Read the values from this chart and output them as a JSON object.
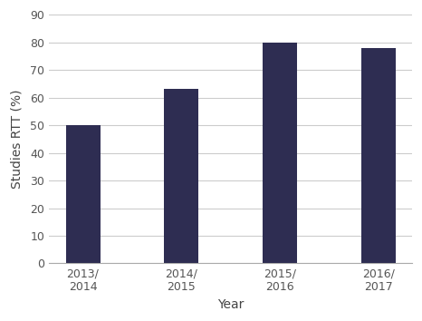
{
  "categories": [
    "2013/\n2014",
    "2014/\n2015",
    "2015/\n2016",
    "2016/\n2017"
  ],
  "values": [
    50,
    63,
    80,
    78
  ],
  "bar_color": "#2e2d52",
  "xlabel": "Year",
  "ylabel": "Studies RTT (%)",
  "ylim": [
    0,
    90
  ],
  "yticks": [
    0,
    10,
    20,
    30,
    40,
    50,
    60,
    70,
    80,
    90
  ],
  "background_color": "#ffffff",
  "grid_color": "#cccccc",
  "bar_width": 0.35,
  "tick_fontsize": 9,
  "label_fontsize": 10,
  "tick_color": "#555555",
  "label_color": "#444444"
}
